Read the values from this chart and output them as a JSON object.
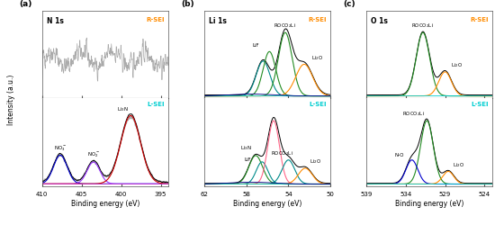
{
  "panel_a_label": "(a)",
  "panel_b_label": "(b)",
  "panel_c_label": "(c)",
  "n1s_label": "N 1s",
  "li1s_label": "Li 1s",
  "o1s_label": "O 1s",
  "rsei_label": "R-SEI",
  "lsei_label": "L-SEI",
  "xlabel": "Binding energy (eV)",
  "ylabel": "Intensity (a.u.)",
  "rsei_color": "#FF8C00",
  "lsei_color": "#00CED1",
  "fig_width": 5.5,
  "fig_height": 2.51,
  "n1s_xticks": [
    410,
    405,
    400,
    395
  ],
  "li1s_xticks": [
    62,
    58,
    54,
    50
  ],
  "o1s_xticks": [
    539,
    534,
    529,
    524
  ],
  "border_color": "#555555",
  "noise_color": "#AAAAAA",
  "black": "#000000",
  "dark_green": "#228B22",
  "teal": "#008B8B",
  "orange": "#FF8C00",
  "red_pink": "#FF6688",
  "blue": "#0000CC",
  "cyan": "#00CED1",
  "dark_blue": "#00008B",
  "purple": "#9933FF",
  "red": "#CC0000"
}
